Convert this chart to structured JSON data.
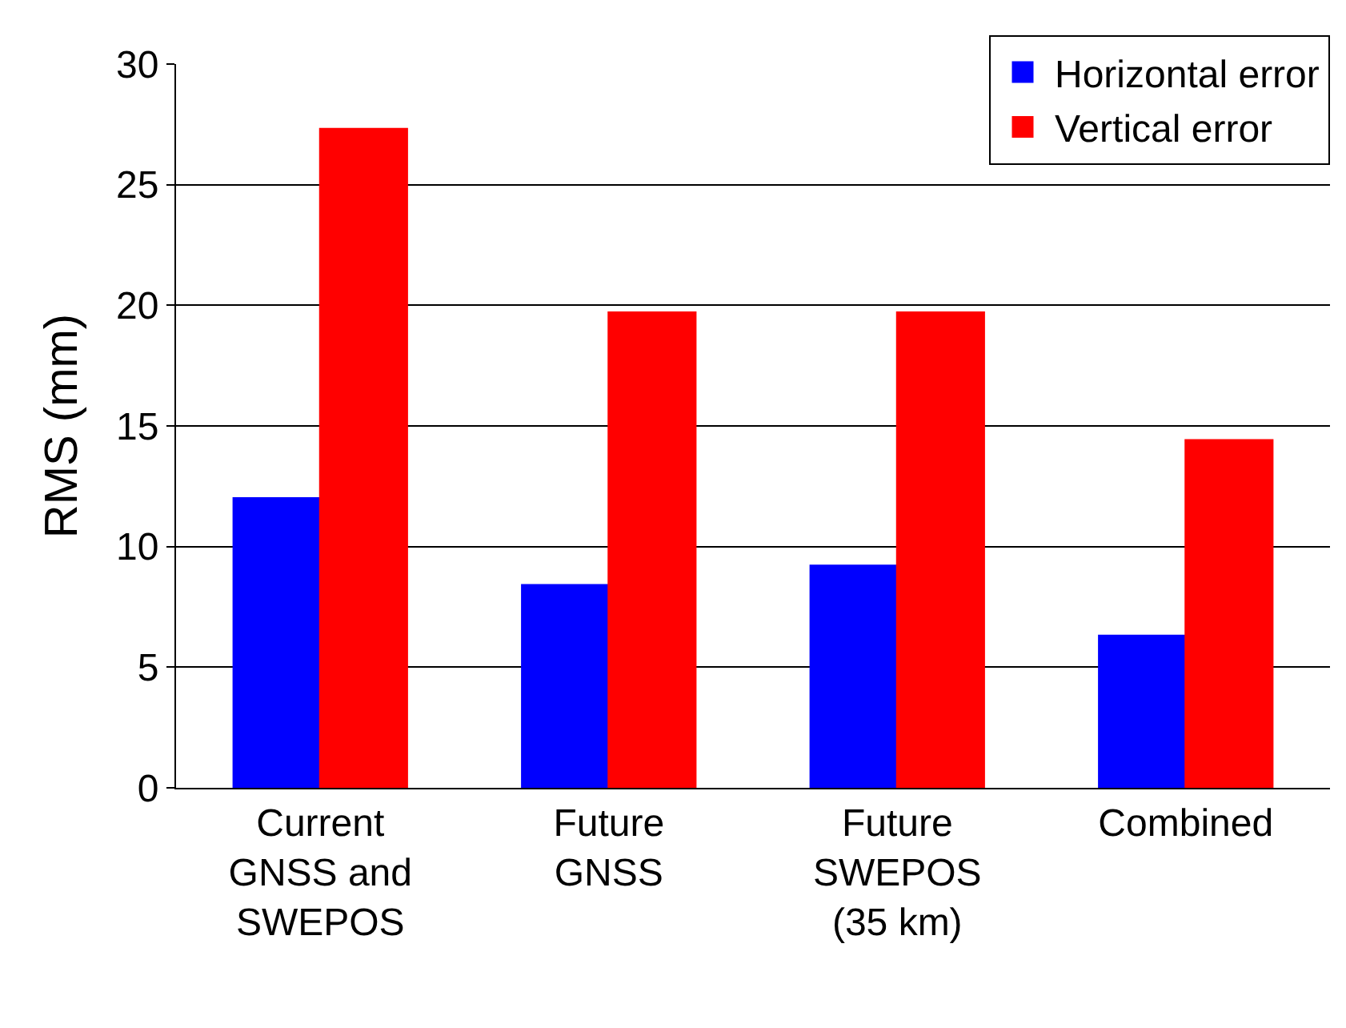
{
  "chart_data": {
    "type": "bar",
    "ylabel": "RMS (mm)",
    "categories": [
      "Current\nGNSS and\nSWEPOS",
      "Future\nGNSS",
      "Future\nSWEPOS\n(35 km)",
      "Combined"
    ],
    "series": [
      {
        "name": "Horizontal error",
        "color": "#0000ff",
        "values": [
          12.0,
          8.4,
          9.2,
          6.3
        ]
      },
      {
        "name": "Vertical error",
        "color": "#ff0000",
        "values": [
          27.3,
          19.7,
          19.7,
          14.4
        ]
      }
    ],
    "ylim": [
      0,
      30
    ],
    "yticks": [
      0,
      5,
      10,
      15,
      20,
      25,
      30
    ],
    "grid": "y",
    "legend": "top right"
  }
}
